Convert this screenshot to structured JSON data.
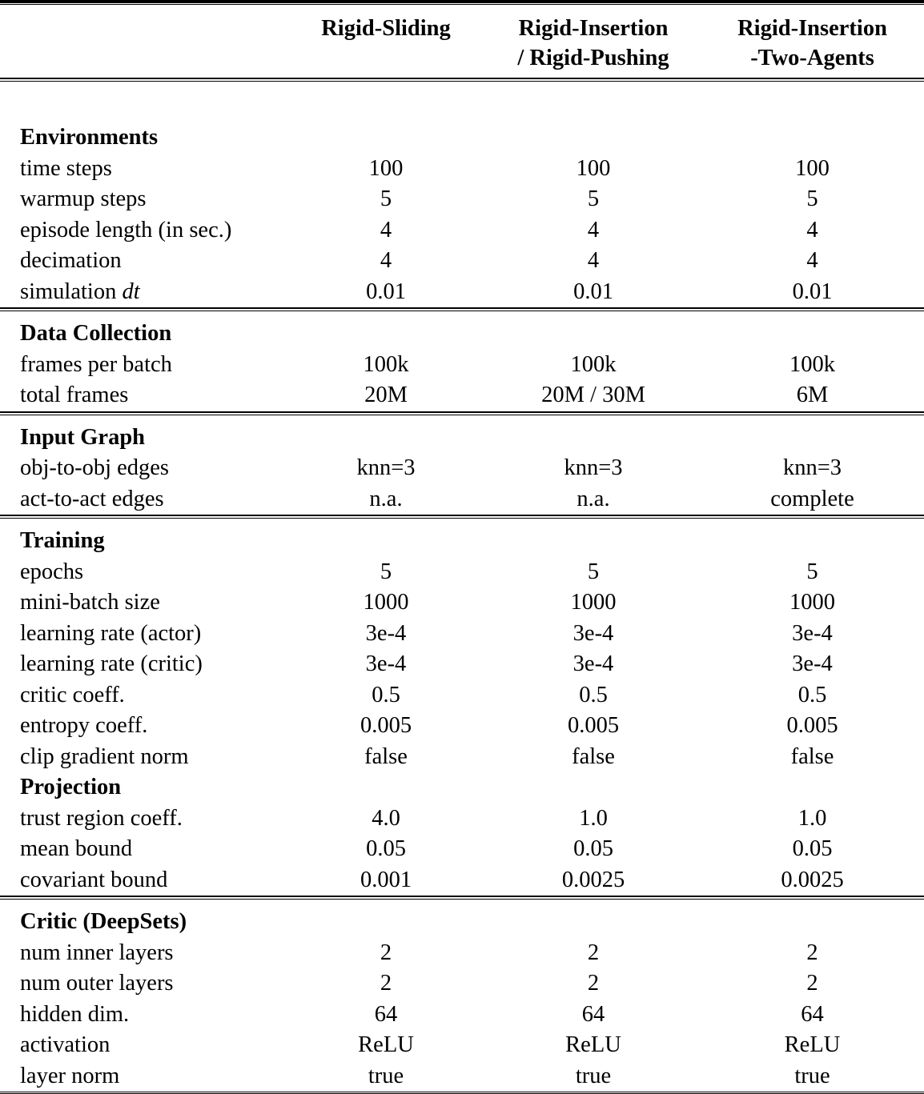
{
  "colors": {
    "text": "#000000",
    "background": "#ffffff",
    "rule": "#000000"
  },
  "table": {
    "header": {
      "columns": [
        {
          "line1": "Rigid-Sliding",
          "line2": ""
        },
        {
          "line1": "Rigid-Insertion",
          "line2": "/ Rigid-Pushing"
        },
        {
          "line1": "Rigid-Insertion",
          "line2": "-Two-Agents"
        }
      ]
    },
    "blocks": [
      {
        "groups": [
          {
            "title": "Environments",
            "rows": [
              {
                "label": "time steps",
                "values": [
                  "100",
                  "100",
                  "100"
                ]
              },
              {
                "label": "warmup steps",
                "values": [
                  "5",
                  "5",
                  "5"
                ]
              },
              {
                "label": "episode length (in sec.)",
                "values": [
                  "4",
                  "4",
                  "4"
                ]
              },
              {
                "label": "decimation",
                "values": [
                  "4",
                  "4",
                  "4"
                ]
              },
              {
                "label": "simulation",
                "label_italic": "dt",
                "values": [
                  "0.01",
                  "0.01",
                  "0.01"
                ]
              }
            ]
          }
        ]
      },
      {
        "groups": [
          {
            "title": "Data Collection",
            "rows": [
              {
                "label": "frames per batch",
                "values": [
                  "100k",
                  "100k",
                  "100k"
                ]
              },
              {
                "label": "total frames",
                "values": [
                  "20M",
                  "20M / 30M",
                  "6M"
                ]
              }
            ]
          }
        ]
      },
      {
        "groups": [
          {
            "title": "Input Graph",
            "rows": [
              {
                "label": "obj-to-obj edges",
                "values": [
                  "knn=3",
                  "knn=3",
                  "knn=3"
                ]
              },
              {
                "label": "act-to-act edges",
                "values": [
                  "n.a.",
                  "n.a.",
                  "complete"
                ]
              }
            ]
          }
        ]
      },
      {
        "groups": [
          {
            "title": "Training",
            "rows": [
              {
                "label": "epochs",
                "values": [
                  "5",
                  "5",
                  "5"
                ]
              },
              {
                "label": "mini-batch size",
                "values": [
                  "1000",
                  "1000",
                  "1000"
                ]
              },
              {
                "label": "learning rate (actor)",
                "values": [
                  "3e-4",
                  "3e-4",
                  "3e-4"
                ]
              },
              {
                "label": "learning rate (critic)",
                "values": [
                  "3e-4",
                  "3e-4",
                  "3e-4"
                ]
              },
              {
                "label": "critic coeff.",
                "values": [
                  "0.5",
                  "0.5",
                  "0.5"
                ]
              },
              {
                "label": "entropy coeff.",
                "values": [
                  "0.005",
                  "0.005",
                  "0.005"
                ]
              },
              {
                "label": "clip gradient norm",
                "values": [
                  "false",
                  "false",
                  "false"
                ]
              }
            ]
          },
          {
            "title": "Projection",
            "rows": [
              {
                "label": "trust region coeff.",
                "values": [
                  "4.0",
                  "1.0",
                  "1.0"
                ]
              },
              {
                "label": "mean bound",
                "values": [
                  "0.05",
                  "0.05",
                  "0.05"
                ]
              },
              {
                "label": "covariant bound",
                "values": [
                  "0.001",
                  "0.0025",
                  "0.0025"
                ]
              }
            ]
          }
        ]
      },
      {
        "groups": [
          {
            "title": "Critic (DeepSets)",
            "rows": [
              {
                "label": "num inner layers",
                "values": [
                  "2",
                  "2",
                  "2"
                ]
              },
              {
                "label": "num outer layers",
                "values": [
                  "2",
                  "2",
                  "2"
                ]
              },
              {
                "label": "hidden dim.",
                "values": [
                  "64",
                  "64",
                  "64"
                ]
              },
              {
                "label": "activation",
                "values": [
                  "ReLU",
                  "ReLU",
                  "ReLU"
                ]
              },
              {
                "label": "layer norm",
                "values": [
                  "true",
                  "true",
                  "true"
                ]
              }
            ]
          }
        ]
      }
    ]
  }
}
